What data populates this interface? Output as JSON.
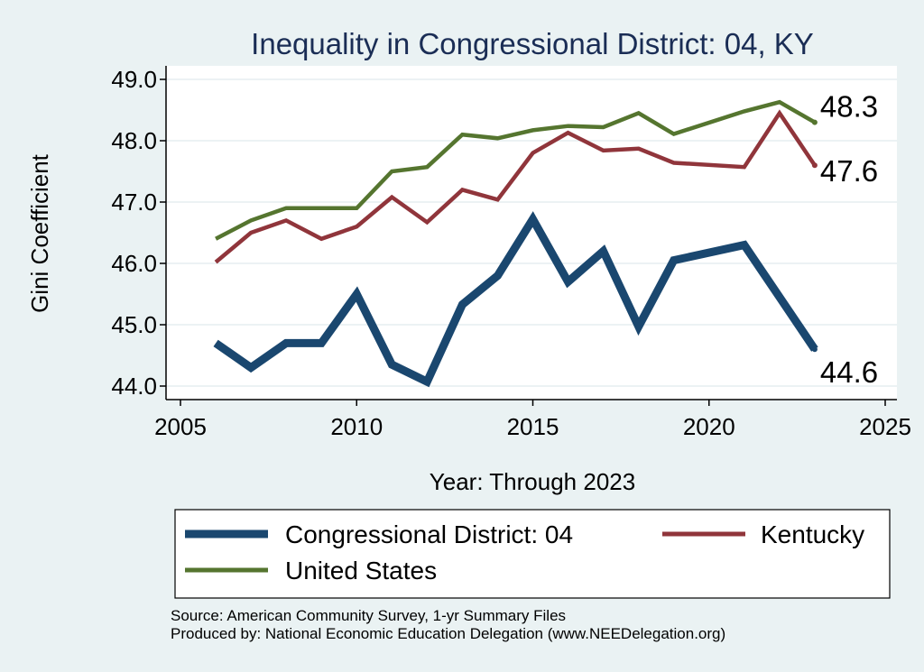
{
  "chart_data": {
    "type": "line",
    "title": "Inequality in Congressional District:  04, KY",
    "xlabel": "Year: Through 2023",
    "ylabel": "Gini Coefficient",
    "xlim": [
      2005,
      2025
    ],
    "ylim": [
      44.0,
      49.0
    ],
    "xticks": [
      "2005",
      "2010",
      "2015",
      "2020",
      "2025"
    ],
    "yticks": [
      "44.0",
      "45.0",
      "46.0",
      "47.0",
      "48.0",
      "49.0"
    ],
    "x": [
      2006,
      2007,
      2008,
      2009,
      2010,
      2011,
      2012,
      2013,
      2014,
      2015,
      2016,
      2017,
      2018,
      2019,
      2021,
      2022,
      2023
    ],
    "series": [
      {
        "name": "Congressional District:  04",
        "color": "#1a476f",
        "width": "thick",
        "values": [
          44.7,
          44.3,
          44.7,
          44.7,
          45.5,
          44.35,
          44.07,
          45.33,
          45.8,
          46.72,
          45.7,
          46.2,
          44.97,
          46.05,
          46.3,
          45.45,
          44.6
        ],
        "end_label": "44.6"
      },
      {
        "name": "Kentucky",
        "color": "#90353b",
        "width": "medium",
        "values": [
          46.02,
          46.5,
          46.7,
          46.4,
          46.6,
          47.08,
          46.67,
          47.2,
          47.04,
          47.8,
          48.13,
          47.84,
          47.87,
          47.64,
          47.57,
          48.45,
          47.6
        ],
        "end_label": "47.6"
      },
      {
        "name": "United States",
        "color": "#55752f",
        "width": "medium",
        "values": [
          46.4,
          46.7,
          46.9,
          46.9,
          46.9,
          47.5,
          47.57,
          48.1,
          48.04,
          48.17,
          48.24,
          48.22,
          48.45,
          48.11,
          48.48,
          48.63,
          48.3
        ],
        "end_label": "48.3"
      }
    ],
    "legend": {
      "placement": "bottom",
      "entries": [
        "Congressional District:  04",
        "Kentucky",
        "United States"
      ]
    },
    "source_lines": [
      "Source: American Community Survey, 1-yr Summary Files",
      "Produced by: National Economic Education Delegation (www.NEEDelegation.org)"
    ]
  }
}
